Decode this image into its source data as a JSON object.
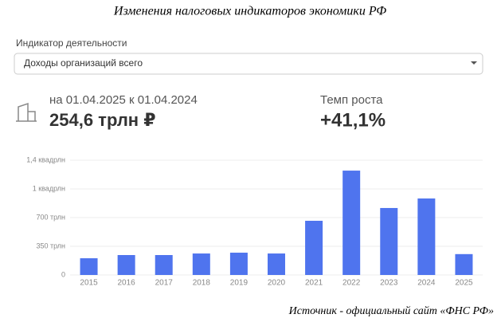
{
  "header": {
    "title": "Изменения налоговых индикаторов экономики РФ"
  },
  "filter": {
    "label": "Индикатор деятельности",
    "selected": "Доходы организаций всего"
  },
  "summary": {
    "period": "на 01.04.2025 к 01.04.2024",
    "value": "254,6 трлн ₽",
    "growth_label": "Темп роста",
    "growth_value": "+41,1%"
  },
  "chart_data": {
    "type": "bar",
    "categories": [
      "2015",
      "2016",
      "2017",
      "2018",
      "2019",
      "2020",
      "2021",
      "2022",
      "2023",
      "2024",
      "2025"
    ],
    "values": [
      204,
      243,
      243,
      262,
      272,
      262,
      661,
      1273,
      817,
      933,
      254.6
    ],
    "color": "#4f74ee",
    "ylim": [
      0,
      1400
    ],
    "yticks": [
      0,
      {
        "value": 350,
        "label": "350 трлн"
      },
      {
        "value": 700,
        "label": "700 трлн"
      },
      {
        "value": 1050,
        "label": "1 квадрлн"
      },
      {
        "value": 1400,
        "label": "1,4 квадрлн"
      }
    ],
    "grid": true
  },
  "footer": {
    "source": "Источник - официальный сайт «ФНС РФ»"
  }
}
